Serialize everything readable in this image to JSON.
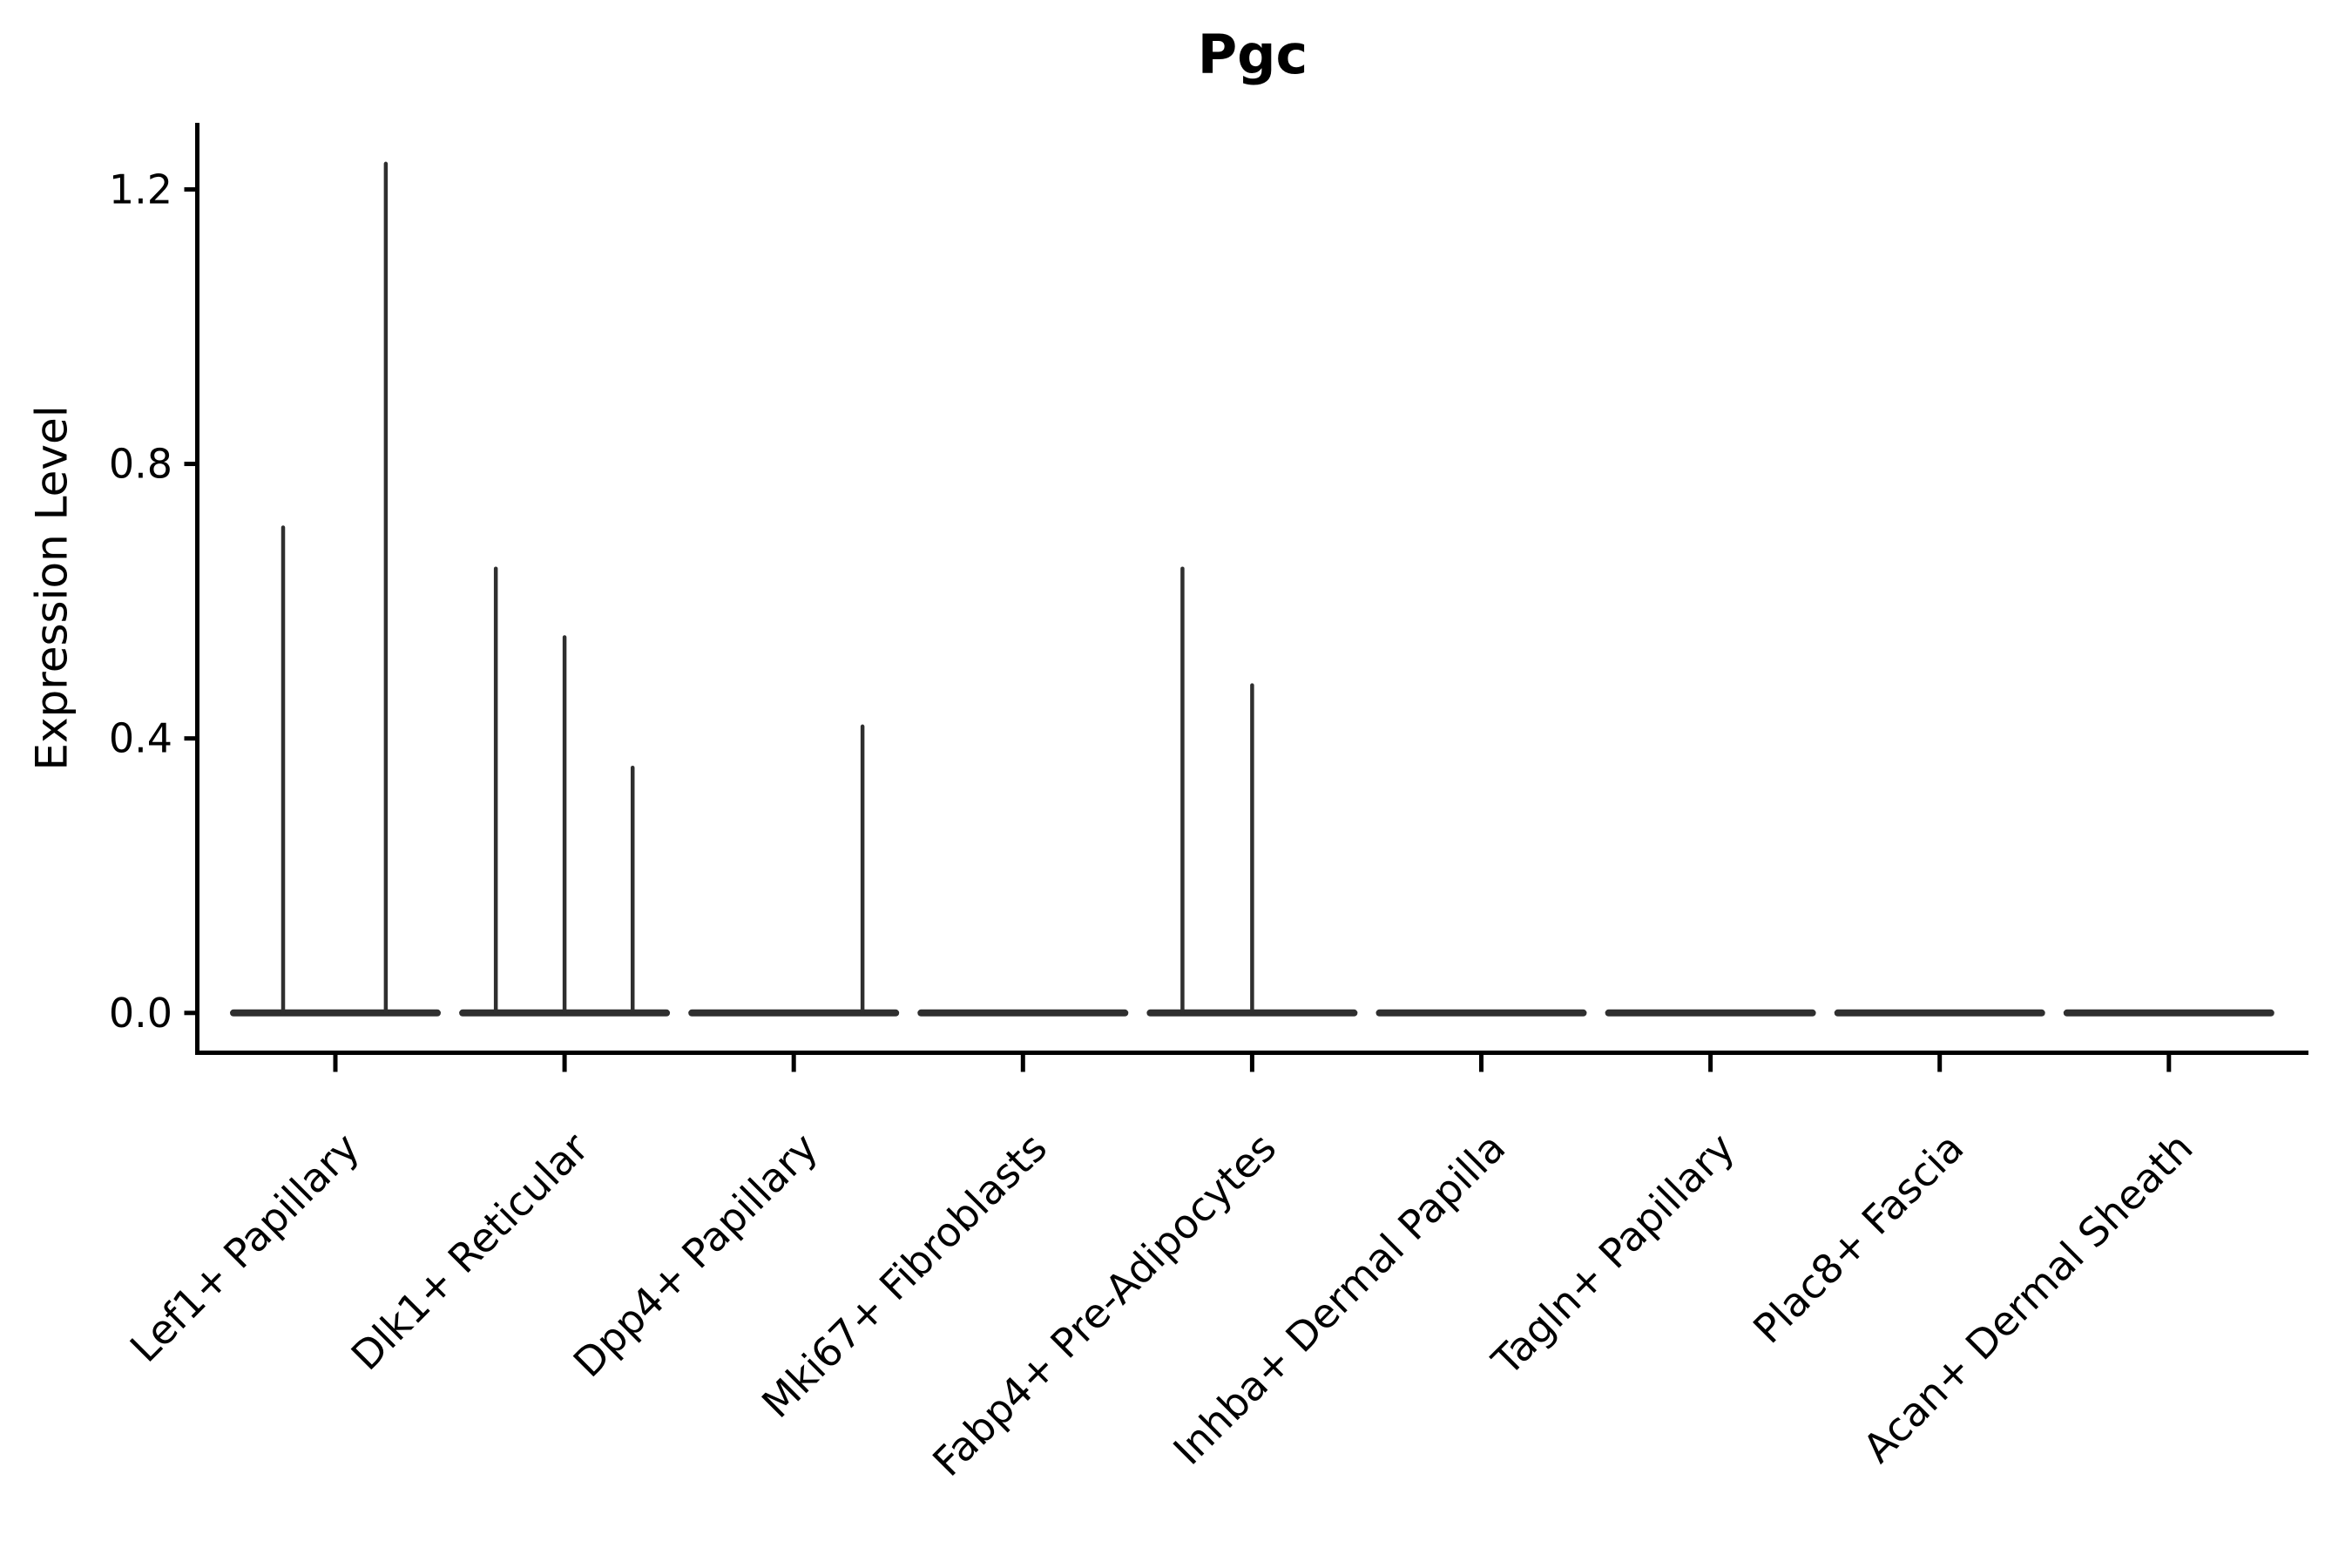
{
  "chart_data": {
    "type": "violin",
    "title": "Pgc",
    "ylabel": "Expression Level",
    "xlabel": "",
    "grid": false,
    "legend": null,
    "ylim": [
      -0.058,
      1.297
    ],
    "yticks": {
      "values": [
        0.0,
        0.4,
        0.8,
        1.2
      ],
      "labels": [
        "0.0",
        "0.4",
        "0.8",
        "1.2"
      ]
    },
    "x_tick_rotation_deg": 45,
    "categories": [
      "Lef1+ Papillary",
      "Dlk1+ Reticular",
      "Dpp4+ Papillary",
      "Mki67+ Fibroblasts",
      "Fabp4+ Pre-Adipocytes",
      "Inhba+ Dermal Papilla",
      "Tagln+ Papillary",
      "Plac8+ Fascia",
      "Acan+ Dermal Sheath"
    ],
    "violins": [
      {
        "category": "Lef1+ Papillary",
        "body_value": 0.0,
        "spikes": [
          {
            "x_offset_frac": -0.228,
            "value": 0.71
          },
          {
            "x_offset_frac": 0.22,
            "value": 1.24
          }
        ]
      },
      {
        "category": "Dlk1+ Reticular",
        "body_value": 0.0,
        "spikes": [
          {
            "x_offset_frac": -0.3,
            "value": 0.65
          },
          {
            "x_offset_frac": 0.0,
            "value": 0.55
          },
          {
            "x_offset_frac": 0.297,
            "value": 0.36
          }
        ]
      },
      {
        "category": "Dpp4+ Papillary",
        "body_value": 0.0,
        "spikes": [
          {
            "x_offset_frac": 0.3,
            "value": 0.42
          }
        ]
      },
      {
        "category": "Mki67+ Fibroblasts",
        "body_value": 0.0,
        "spikes": []
      },
      {
        "category": "Fabp4+ Pre-Adipocytes",
        "body_value": 0.0,
        "spikes": [
          {
            "x_offset_frac": -0.304,
            "value": 0.65
          },
          {
            "x_offset_frac": 0.0,
            "value": 0.48
          }
        ]
      },
      {
        "category": "Inhba+ Dermal Papilla",
        "body_value": 0.0,
        "spikes": []
      },
      {
        "category": "Tagln+ Papillary",
        "body_value": 0.0,
        "spikes": []
      },
      {
        "category": "Plac8+ Fascia",
        "body_value": 0.0,
        "spikes": []
      },
      {
        "category": "Acan+ Dermal Sheath",
        "body_value": 0.0,
        "spikes": []
      }
    ],
    "colors": {
      "violin_stroke": "#2f2f2f",
      "axis": "#000000",
      "text": "#000000",
      "background": "#ffffff"
    }
  }
}
